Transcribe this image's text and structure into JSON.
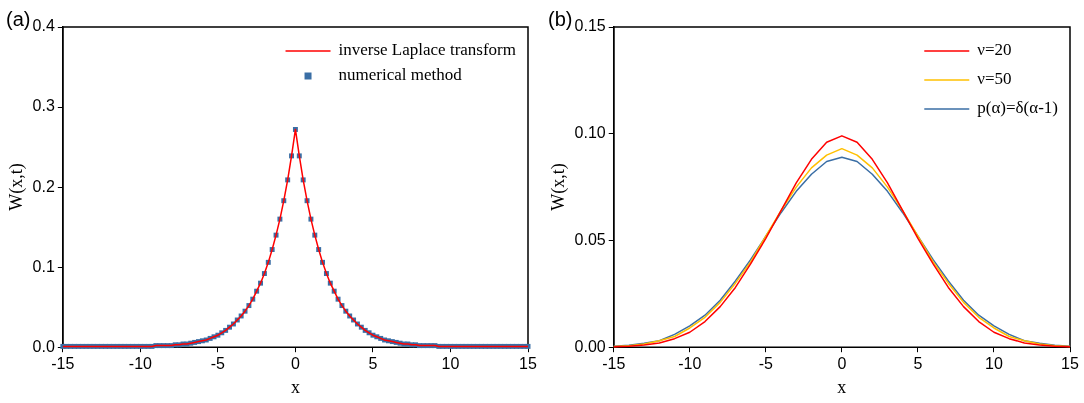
{
  "chart_data": [
    {
      "type": "line",
      "title": "(a)",
      "xlabel": "x",
      "ylabel": "W(x,t)",
      "xlim": [
        -15,
        15
      ],
      "xticks": [
        -15,
        -10,
        -5,
        0,
        5,
        10,
        15
      ],
      "ylim": [
        0,
        0.4
      ],
      "yticks": [
        {
          "value": 0,
          "label": "0.0"
        },
        {
          "value": 0.1,
          "label": "0.1"
        },
        {
          "value": 0.2,
          "label": "0.2"
        },
        {
          "value": 0.3,
          "label": "0.3"
        },
        {
          "value": 0.4,
          "label": "0.4"
        }
      ],
      "legend": "top right",
      "grid": false,
      "x": [
        -15,
        -14.75,
        -14.5,
        -14.25,
        -14,
        -13.75,
        -13.5,
        -13.25,
        -13,
        -12.75,
        -12.5,
        -12.25,
        -12,
        -11.75,
        -11.5,
        -11.25,
        -11,
        -10.75,
        -10.5,
        -10.25,
        -10,
        -9.75,
        -9.5,
        -9.25,
        -9,
        -8.75,
        -8.5,
        -8.25,
        -8,
        -7.75,
        -7.5,
        -7.25,
        -7,
        -6.75,
        -6.5,
        -6.25,
        -6,
        -5.75,
        -5.5,
        -5.25,
        -5,
        -4.75,
        -4.5,
        -4.25,
        -4,
        -3.75,
        -3.5,
        -3.25,
        -3,
        -2.75,
        -2.5,
        -2.25,
        -2,
        -1.75,
        -1.5,
        -1.25,
        -1,
        -0.75,
        -0.5,
        -0.25,
        0,
        0.25,
        0.5,
        0.75,
        1,
        1.25,
        1.5,
        1.75,
        2,
        2.25,
        2.5,
        2.75,
        3,
        3.25,
        3.5,
        3.75,
        4,
        4.25,
        4.5,
        4.75,
        5,
        5.25,
        5.5,
        5.75,
        6,
        6.25,
        6.5,
        6.75,
        7,
        7.25,
        7.5,
        7.75,
        8,
        8.25,
        8.5,
        8.75,
        9,
        9.25,
        9.5,
        9.75,
        10,
        10.25,
        10.5,
        10.75,
        11,
        11.25,
        11.5,
        11.75,
        12,
        12.25,
        12.5,
        12.75,
        13,
        13.25,
        13.5,
        13.75,
        14,
        14.25,
        14.5,
        14.75,
        15
      ],
      "series": [
        {
          "name": "inverse Laplace transform",
          "marker": "none",
          "color": "#ff0000",
          "values": [
            0.001,
            0.001,
            0.001,
            0.001,
            0.001,
            0.001,
            0.001,
            0.001,
            0.001,
            0.001,
            0.001,
            0.001,
            0.001,
            0.001,
            0.001,
            0.001,
            0.001,
            0.001,
            0.001,
            0.001,
            0.001,
            0.001,
            0.001,
            0.001,
            0.002,
            0.002,
            0.002,
            0.002,
            0.002,
            0.003,
            0.003,
            0.004,
            0.004,
            0.005,
            0.006,
            0.007,
            0.008,
            0.009,
            0.011,
            0.013,
            0.015,
            0.018,
            0.021,
            0.025,
            0.029,
            0.034,
            0.039,
            0.045,
            0.052,
            0.06,
            0.07,
            0.08,
            0.092,
            0.106,
            0.122,
            0.14,
            0.16,
            0.183,
            0.209,
            0.239,
            0.272,
            0.239,
            0.209,
            0.183,
            0.16,
            0.14,
            0.122,
            0.106,
            0.092,
            0.08,
            0.07,
            0.06,
            0.052,
            0.045,
            0.039,
            0.034,
            0.029,
            0.025,
            0.021,
            0.018,
            0.015,
            0.013,
            0.011,
            0.009,
            0.008,
            0.007,
            0.006,
            0.005,
            0.004,
            0.004,
            0.003,
            0.003,
            0.002,
            0.002,
            0.002,
            0.002,
            0.002,
            0.001,
            0.001,
            0.001,
            0.001,
            0.001,
            0.001,
            0.001,
            0.001,
            0.001,
            0.001,
            0.001,
            0.001,
            0.001,
            0.001,
            0.001,
            0.001,
            0.001,
            0.001,
            0.001,
            0.001,
            0.001,
            0.001,
            0.001,
            0.001
          ]
        },
        {
          "name": "numerical method",
          "type": "scatter",
          "marker": "square",
          "color": "#3a6ea5",
          "values": [
            0.001,
            0.001,
            0.001,
            0.001,
            0.001,
            0.001,
            0.001,
            0.001,
            0.001,
            0.001,
            0.001,
            0.001,
            0.001,
            0.001,
            0.001,
            0.001,
            0.001,
            0.001,
            0.001,
            0.001,
            0.001,
            0.001,
            0.001,
            0.001,
            0.002,
            0.002,
            0.002,
            0.002,
            0.002,
            0.003,
            0.003,
            0.004,
            0.004,
            0.005,
            0.006,
            0.007,
            0.008,
            0.009,
            0.011,
            0.013,
            0.015,
            0.018,
            0.021,
            0.025,
            0.029,
            0.034,
            0.039,
            0.045,
            0.052,
            0.06,
            0.07,
            0.08,
            0.092,
            0.106,
            0.122,
            0.14,
            0.16,
            0.183,
            0.209,
            0.239,
            0.272,
            0.239,
            0.209,
            0.183,
            0.16,
            0.14,
            0.122,
            0.106,
            0.092,
            0.08,
            0.07,
            0.06,
            0.052,
            0.045,
            0.039,
            0.034,
            0.029,
            0.025,
            0.021,
            0.018,
            0.015,
            0.013,
            0.011,
            0.009,
            0.008,
            0.007,
            0.006,
            0.005,
            0.004,
            0.004,
            0.003,
            0.003,
            0.002,
            0.002,
            0.002,
            0.002,
            0.002,
            0.001,
            0.001,
            0.001,
            0.001,
            0.001,
            0.001,
            0.001,
            0.001,
            0.001,
            0.001,
            0.001,
            0.001,
            0.001,
            0.001,
            0.001,
            0.001,
            0.001,
            0.001,
            0.001,
            0.001,
            0.001,
            0.001,
            0.001,
            0.001
          ]
        }
      ]
    },
    {
      "type": "line",
      "title": "(b)",
      "xlabel": "x",
      "ylabel": "W(x,t)",
      "xlim": [
        -15,
        15
      ],
      "xticks": [
        -15,
        -10,
        -5,
        0,
        5,
        10,
        15
      ],
      "ylim": [
        0,
        0.15
      ],
      "yticks": [
        {
          "value": 0,
          "label": "0.00"
        },
        {
          "value": 0.05,
          "label": "0.05"
        },
        {
          "value": 0.1,
          "label": "0.10"
        },
        {
          "value": 0.15,
          "label": "0.15"
        }
      ],
      "legend": "top right",
      "grid": false,
      "marker": "none",
      "x": [
        -15,
        -14,
        -13,
        -12,
        -11,
        -10,
        -9,
        -8,
        -7,
        -6,
        -5,
        -4,
        -3,
        -2,
        -1,
        0,
        1,
        2,
        3,
        4,
        5,
        6,
        7,
        8,
        9,
        10,
        11,
        12,
        13,
        14,
        15
      ],
      "series": [
        {
          "name": "ν=20",
          "color": "#ff0000",
          "values": [
            0.0002,
            0.0005,
            0.001,
            0.002,
            0.004,
            0.007,
            0.012,
            0.019,
            0.028,
            0.039,
            0.051,
            0.064,
            0.077,
            0.088,
            0.096,
            0.099,
            0.096,
            0.088,
            0.077,
            0.064,
            0.051,
            0.039,
            0.028,
            0.019,
            0.012,
            0.007,
            0.004,
            0.002,
            0.001,
            0.0005,
            0.0002
          ]
        },
        {
          "name": "ν=50",
          "color": "#ffc000",
          "values": [
            0.0003,
            0.0007,
            0.0015,
            0.003,
            0.005,
            0.009,
            0.014,
            0.021,
            0.03,
            0.04,
            0.052,
            0.064,
            0.075,
            0.084,
            0.09,
            0.093,
            0.09,
            0.084,
            0.075,
            0.064,
            0.052,
            0.04,
            0.03,
            0.021,
            0.014,
            0.009,
            0.005,
            0.003,
            0.0015,
            0.0007,
            0.0003
          ]
        },
        {
          "name": "p(α)=δ(α-1)",
          "color": "#3a6ea5",
          "values": [
            0.0004,
            0.0009,
            0.0018,
            0.003,
            0.006,
            0.01,
            0.015,
            0.022,
            0.031,
            0.041,
            0.052,
            0.063,
            0.073,
            0.081,
            0.087,
            0.089,
            0.087,
            0.081,
            0.073,
            0.063,
            0.052,
            0.041,
            0.031,
            0.022,
            0.015,
            0.01,
            0.006,
            0.003,
            0.0018,
            0.0009,
            0.0004
          ]
        }
      ]
    }
  ]
}
